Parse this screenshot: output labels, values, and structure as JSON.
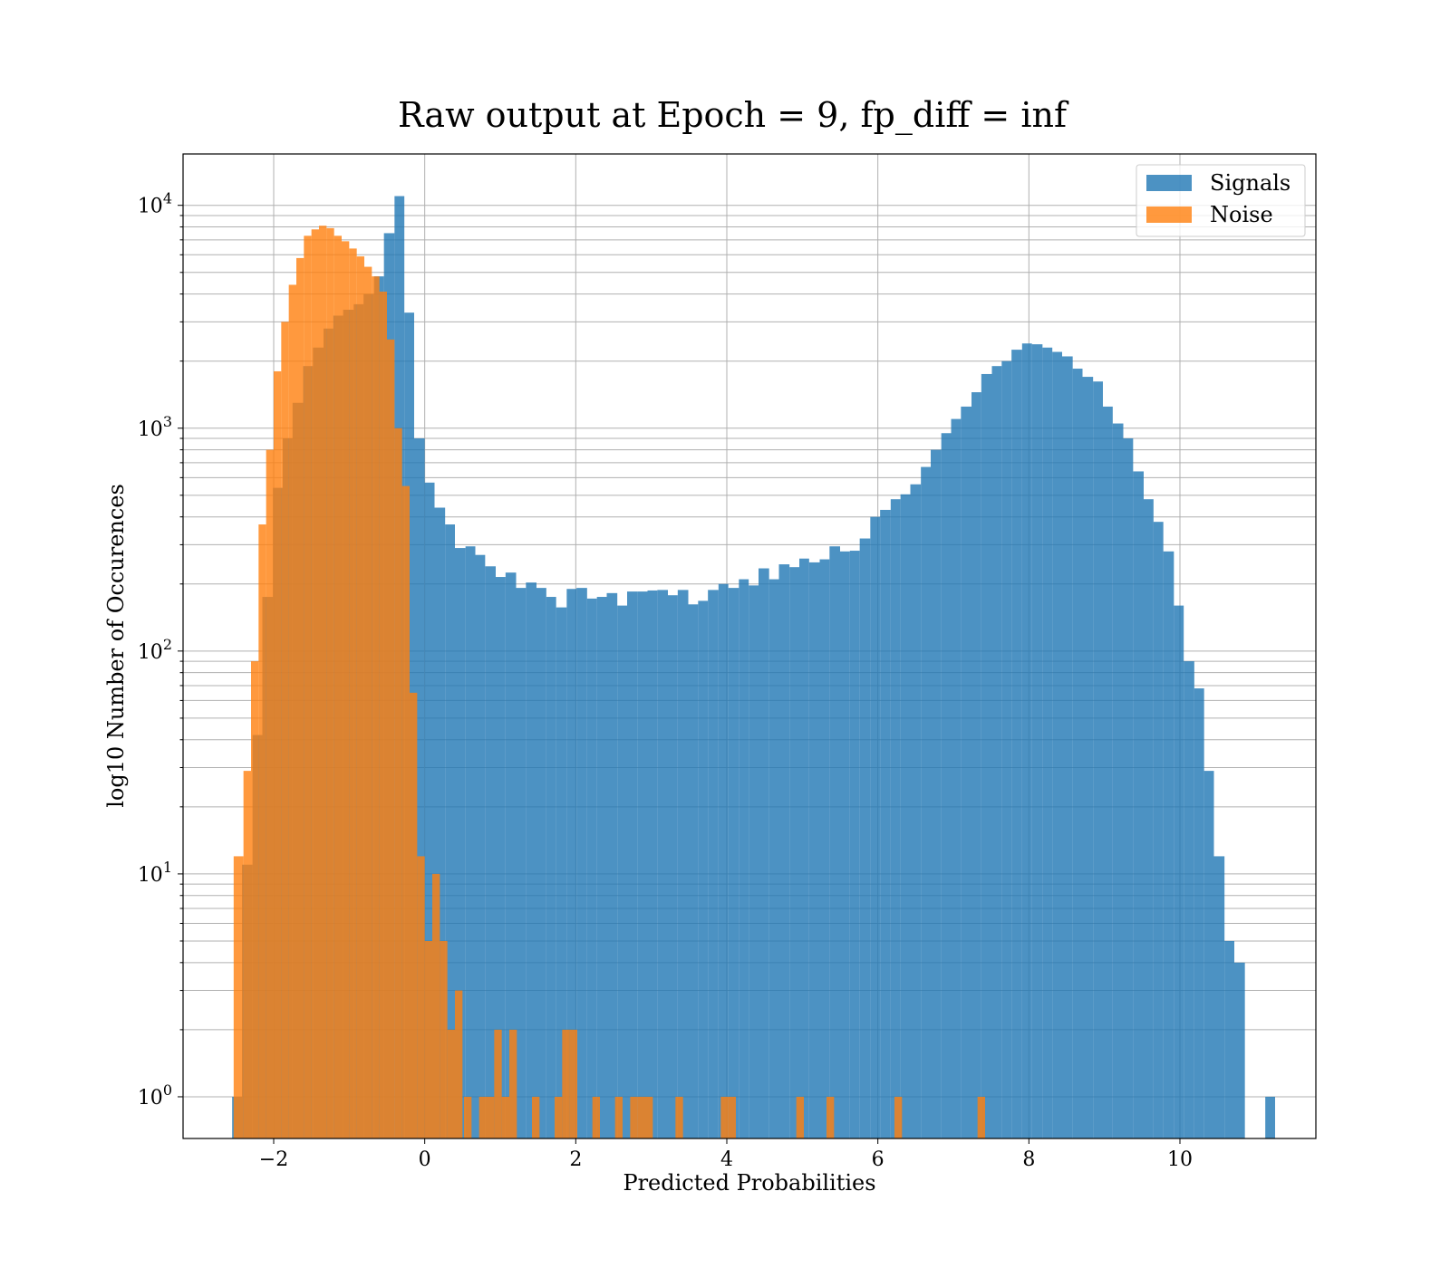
{
  "chart_data": {
    "type": "histogram",
    "title": "Raw output at Epoch = 9, fp_diff = inf",
    "xlabel": "Predicted Probabilities",
    "ylabel": "log10 Number of Occurences",
    "xlim": [
      -3.2,
      11.8
    ],
    "ylim": [
      0.65,
      17000
    ],
    "yscale": "log",
    "grid": true,
    "legend_placement": "top-right",
    "x_ticks": [
      -2,
      0,
      2,
      4,
      6,
      8,
      10
    ],
    "x_tick_labels": [
      "−2",
      "0",
      "2",
      "4",
      "6",
      "8",
      "10"
    ],
    "y_ticks": [
      {
        "base": "10",
        "exp": "0",
        "value": 1
      },
      {
        "base": "10",
        "exp": "1",
        "value": 10
      },
      {
        "base": "10",
        "exp": "2",
        "value": 100
      },
      {
        "base": "10",
        "exp": "3",
        "value": 1000
      },
      {
        "base": "10",
        "exp": "4",
        "value": 10000
      }
    ],
    "series": [
      {
        "name": "Signals",
        "color": "#1f77b4",
        "opacity": 0.8,
        "bins": [
          [
            -2.55,
            -2.42,
            1
          ],
          [
            -2.42,
            -2.28,
            11
          ],
          [
            -2.28,
            -2.15,
            42
          ],
          [
            -2.15,
            -2.01,
            175
          ],
          [
            -2.01,
            -1.88,
            540
          ],
          [
            -1.88,
            -1.75,
            900
          ],
          [
            -1.75,
            -1.61,
            1300
          ],
          [
            -1.61,
            -1.48,
            1900
          ],
          [
            -1.48,
            -1.34,
            2300
          ],
          [
            -1.34,
            -1.21,
            2800
          ],
          [
            -1.21,
            -1.08,
            3200
          ],
          [
            -1.08,
            -0.94,
            3400
          ],
          [
            -0.94,
            -0.81,
            3600
          ],
          [
            -0.81,
            -0.67,
            4000
          ],
          [
            -0.67,
            -0.54,
            4800
          ],
          [
            -0.54,
            -0.4,
            7500
          ],
          [
            -0.4,
            -0.27,
            11000
          ],
          [
            -0.27,
            -0.14,
            3300
          ],
          [
            -0.14,
            0.0,
            900
          ],
          [
            0.0,
            0.13,
            570
          ],
          [
            0.13,
            0.27,
            440
          ],
          [
            0.27,
            0.4,
            370
          ],
          [
            0.4,
            0.54,
            290
          ],
          [
            0.54,
            0.67,
            295
          ],
          [
            0.67,
            0.8,
            270
          ],
          [
            0.8,
            0.94,
            240
          ],
          [
            0.94,
            1.07,
            215
          ],
          [
            1.07,
            1.21,
            225
          ],
          [
            1.21,
            1.34,
            192
          ],
          [
            1.34,
            1.48,
            203
          ],
          [
            1.48,
            1.61,
            192
          ],
          [
            1.61,
            1.74,
            175
          ],
          [
            1.74,
            1.88,
            157
          ],
          [
            1.88,
            2.01,
            190
          ],
          [
            2.01,
            2.15,
            192
          ],
          [
            2.15,
            2.28,
            172
          ],
          [
            2.28,
            2.41,
            175
          ],
          [
            2.41,
            2.55,
            182
          ],
          [
            2.55,
            2.68,
            160
          ],
          [
            2.68,
            2.82,
            185
          ],
          [
            2.82,
            2.95,
            185
          ],
          [
            2.95,
            3.08,
            187
          ],
          [
            3.08,
            3.22,
            188
          ],
          [
            3.22,
            3.35,
            178
          ],
          [
            3.35,
            3.49,
            188
          ],
          [
            3.49,
            3.62,
            162
          ],
          [
            3.62,
            3.75,
            168
          ],
          [
            3.75,
            3.89,
            188
          ],
          [
            3.89,
            4.02,
            200
          ],
          [
            4.02,
            4.16,
            192
          ],
          [
            4.16,
            4.29,
            210
          ],
          [
            4.29,
            4.42,
            197
          ],
          [
            4.42,
            4.56,
            235
          ],
          [
            4.56,
            4.69,
            210
          ],
          [
            4.69,
            4.83,
            245
          ],
          [
            4.83,
            4.96,
            238
          ],
          [
            4.96,
            5.09,
            260
          ],
          [
            5.09,
            5.23,
            250
          ],
          [
            5.23,
            5.36,
            258
          ],
          [
            5.36,
            5.5,
            295
          ],
          [
            5.5,
            5.63,
            280
          ],
          [
            5.63,
            5.76,
            282
          ],
          [
            5.76,
            5.9,
            320
          ],
          [
            5.9,
            6.03,
            400
          ],
          [
            6.03,
            6.17,
            430
          ],
          [
            6.17,
            6.3,
            480
          ],
          [
            6.3,
            6.43,
            505
          ],
          [
            6.43,
            6.57,
            560
          ],
          [
            6.57,
            6.7,
            670
          ],
          [
            6.7,
            6.84,
            800
          ],
          [
            6.84,
            6.97,
            950
          ],
          [
            6.97,
            7.1,
            1100
          ],
          [
            7.1,
            7.24,
            1250
          ],
          [
            7.24,
            7.37,
            1450
          ],
          [
            7.37,
            7.51,
            1750
          ],
          [
            7.51,
            7.64,
            1900
          ],
          [
            7.64,
            7.77,
            2000
          ],
          [
            7.77,
            7.91,
            2250
          ],
          [
            7.91,
            8.04,
            2400
          ],
          [
            8.04,
            8.18,
            2380
          ],
          [
            8.18,
            8.31,
            2300
          ],
          [
            8.31,
            8.44,
            2200
          ],
          [
            8.44,
            8.58,
            2100
          ],
          [
            8.58,
            8.71,
            1850
          ],
          [
            8.71,
            8.85,
            1700
          ],
          [
            8.85,
            8.98,
            1620
          ],
          [
            8.98,
            9.11,
            1250
          ],
          [
            9.11,
            9.25,
            1050
          ],
          [
            9.25,
            9.38,
            900
          ],
          [
            9.38,
            9.52,
            640
          ],
          [
            9.52,
            9.65,
            480
          ],
          [
            9.65,
            9.78,
            380
          ],
          [
            9.78,
            9.92,
            280
          ],
          [
            9.92,
            10.05,
            160
          ],
          [
            10.05,
            10.19,
            90
          ],
          [
            10.19,
            10.32,
            68
          ],
          [
            10.32,
            10.45,
            29
          ],
          [
            10.45,
            10.59,
            12
          ],
          [
            10.59,
            10.72,
            5
          ],
          [
            10.72,
            10.86,
            4
          ],
          [
            11.13,
            11.26,
            1
          ]
        ]
      },
      {
        "name": "Noise",
        "color": "#ff7f0e",
        "opacity": 0.8,
        "bins": [
          [
            -2.53,
            -2.4,
            12
          ],
          [
            -2.4,
            -2.3,
            29
          ],
          [
            -2.3,
            -2.2,
            90
          ],
          [
            -2.2,
            -2.1,
            370
          ],
          [
            -2.1,
            -2.0,
            800
          ],
          [
            -2.0,
            -1.9,
            1800
          ],
          [
            -1.9,
            -1.8,
            3000
          ],
          [
            -1.8,
            -1.7,
            4400
          ],
          [
            -1.7,
            -1.6,
            5800
          ],
          [
            -1.6,
            -1.5,
            7300
          ],
          [
            -1.5,
            -1.4,
            7800
          ],
          [
            -1.4,
            -1.3,
            8100
          ],
          [
            -1.3,
            -1.2,
            7900
          ],
          [
            -1.2,
            -1.1,
            7300
          ],
          [
            -1.1,
            -1.0,
            6900
          ],
          [
            -1.0,
            -0.9,
            6400
          ],
          [
            -0.9,
            -0.8,
            5900
          ],
          [
            -0.8,
            -0.7,
            5300
          ],
          [
            -0.7,
            -0.6,
            4800
          ],
          [
            -0.6,
            -0.5,
            4100
          ],
          [
            -0.5,
            -0.4,
            2500
          ],
          [
            -0.4,
            -0.3,
            1000
          ],
          [
            -0.3,
            -0.2,
            550
          ],
          [
            -0.2,
            -0.1,
            65
          ],
          [
            -0.1,
            0.0,
            12
          ],
          [
            0.0,
            0.1,
            5
          ],
          [
            0.1,
            0.2,
            10
          ],
          [
            0.2,
            0.3,
            5
          ],
          [
            0.3,
            0.4,
            2
          ],
          [
            0.4,
            0.5,
            3
          ],
          [
            0.52,
            0.62,
            1
          ],
          [
            0.72,
            0.82,
            1
          ],
          [
            0.82,
            0.92,
            1
          ],
          [
            0.92,
            1.02,
            2
          ],
          [
            1.02,
            1.12,
            1
          ],
          [
            1.12,
            1.22,
            2
          ],
          [
            1.42,
            1.52,
            1
          ],
          [
            1.72,
            1.82,
            1
          ],
          [
            1.82,
            1.92,
            2
          ],
          [
            1.92,
            2.02,
            2
          ],
          [
            2.22,
            2.32,
            1
          ],
          [
            2.52,
            2.62,
            1
          ],
          [
            2.72,
            2.82,
            1
          ],
          [
            2.82,
            2.92,
            1
          ],
          [
            2.92,
            3.02,
            1
          ],
          [
            3.32,
            3.42,
            1
          ],
          [
            3.92,
            4.02,
            1
          ],
          [
            4.02,
            4.12,
            1
          ],
          [
            4.92,
            5.02,
            1
          ],
          [
            5.32,
            5.42,
            1
          ],
          [
            6.22,
            6.32,
            1
          ],
          [
            7.32,
            7.42,
            1
          ]
        ]
      }
    ]
  }
}
